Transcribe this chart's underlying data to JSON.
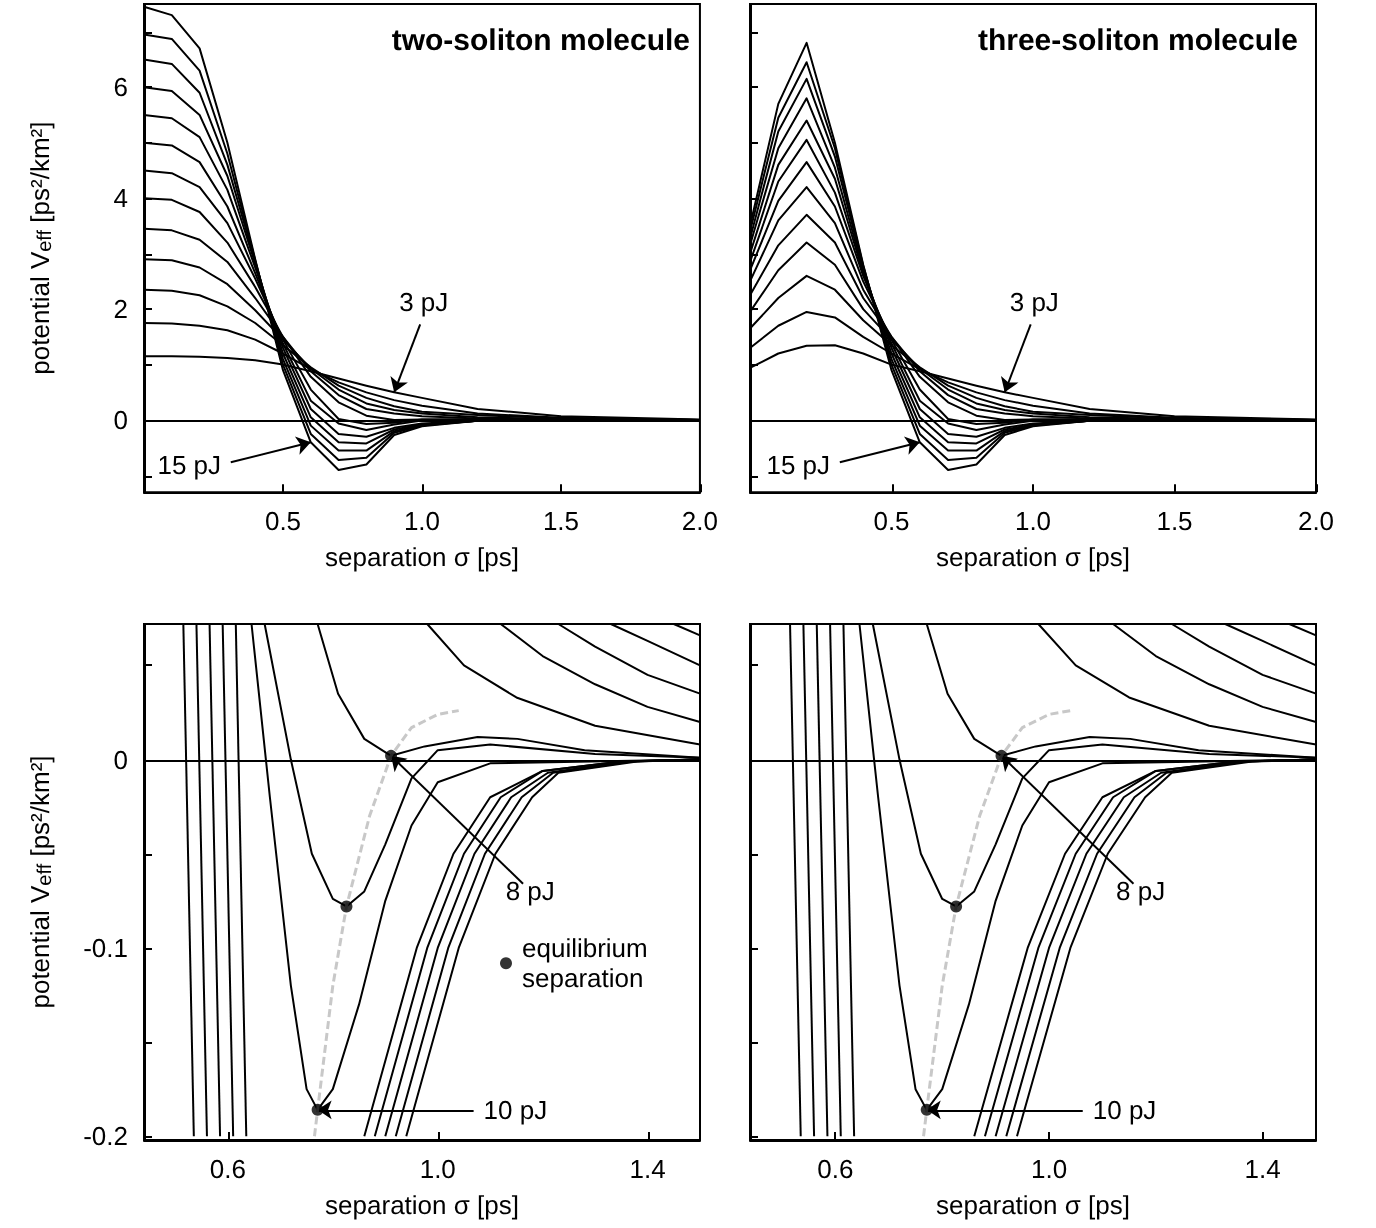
{
  "chart_data": [
    {
      "type": "line",
      "title": "two-soliton molecule",
      "xlabel": "separation σ [ps]",
      "ylabel": "potential V$_{eff}$ [ps²/km²]",
      "marker": "none",
      "xlim": [
        0,
        2
      ],
      "ylim": [
        -1.3,
        7.5
      ],
      "xticks": [
        {
          "value": 0.5,
          "label": "0.5"
        },
        {
          "value": 1,
          "label": "1.0"
        },
        {
          "value": 1.5,
          "label": "1.5"
        },
        {
          "value": 2,
          "label": "2.0"
        }
      ],
      "yticks": [
        {
          "value": -1,
          "label": null
        },
        0,
        {
          "value": 1,
          "label": null
        },
        2,
        {
          "value": 3,
          "label": null
        },
        4,
        {
          "value": 5,
          "label": null
        },
        6,
        {
          "value": 7,
          "label": null
        }
      ],
      "x": [
        0,
        0.1,
        0.2,
        0.3,
        0.4,
        0.5,
        0.6,
        0.7,
        0.8,
        0.9,
        1.0,
        1.2,
        1.5,
        2.0
      ],
      "series": [
        {
          "color": "#000000",
          "values": [
            1.15,
            1.15,
            1.14,
            1.12,
            1.08,
            1.0,
            0.88,
            0.75,
            0.62,
            0.5,
            0.4,
            0.2,
            0.07,
            0.01
          ]
        },
        {
          "color": "#000000",
          "values": [
            1.75,
            1.74,
            1.7,
            1.62,
            1.45,
            1.2,
            0.92,
            0.68,
            0.5,
            0.36,
            0.26,
            0.12,
            0.04,
            0
          ]
        },
        {
          "color": "#000000",
          "values": [
            2.35,
            2.33,
            2.25,
            2.05,
            1.75,
            1.35,
            0.95,
            0.62,
            0.4,
            0.25,
            0.15,
            0.09,
            0.03,
            0
          ]
        },
        {
          "color": "#000000",
          "values": [
            2.9,
            2.88,
            2.75,
            2.45,
            1.98,
            1.45,
            0.93,
            0.55,
            0.3,
            0.18,
            0.12,
            0.05,
            0.02,
            0
          ]
        },
        {
          "color": "#000000",
          "values": [
            3.45,
            3.42,
            3.25,
            2.85,
            2.2,
            1.5,
            0.88,
            0.45,
            0.2,
            0.12,
            0.07,
            0.03,
            0.01,
            0
          ]
        },
        {
          "color": "#000000",
          "values": [
            4.0,
            3.97,
            3.75,
            3.2,
            2.4,
            1.5,
            0.78,
            0.32,
            0.08,
            0,
            0.01,
            0.01,
            0,
            0
          ]
        },
        {
          "color": "#000000",
          "values": [
            4.5,
            4.45,
            4.2,
            3.55,
            2.55,
            1.45,
            0.55,
            0.02,
            -0.07,
            -0.05,
            0.01,
            0.01,
            0,
            0
          ]
        },
        {
          "color": "#000000",
          "values": [
            5.0,
            4.95,
            4.65,
            3.85,
            2.65,
            1.38,
            0.35,
            -0.06,
            -0.18,
            -0.08,
            -0.01,
            0,
            0,
            0
          ]
        },
        {
          "color": "#000000",
          "values": [
            5.5,
            5.44,
            5.1,
            4.15,
            2.75,
            1.3,
            0.2,
            -0.25,
            -0.3,
            -0.14,
            -0.06,
            -0.01,
            0,
            0
          ]
        },
        {
          "color": "#000000",
          "values": [
            6.0,
            5.93,
            5.5,
            4.4,
            2.82,
            1.2,
            0.05,
            -0.4,
            -0.42,
            -0.17,
            -0.08,
            -0.01,
            0,
            0
          ]
        },
        {
          "color": "#000000",
          "values": [
            6.5,
            6.42,
            5.9,
            4.6,
            2.86,
            1.1,
            -0.1,
            -0.55,
            -0.55,
            -0.2,
            -0.09,
            -0.01,
            0,
            0
          ]
        },
        {
          "color": "#000000",
          "values": [
            6.95,
            6.87,
            6.3,
            4.8,
            2.88,
            1.0,
            -0.25,
            -0.72,
            -0.68,
            -0.23,
            -0.1,
            -0.01,
            0,
            0
          ]
        },
        {
          "color": "#000000",
          "values": [
            7.45,
            7.3,
            6.7,
            5.0,
            2.9,
            0.9,
            -0.4,
            -0.9,
            -0.8,
            -0.27,
            -0.11,
            -0.01,
            0,
            0
          ]
        }
      ],
      "ref_lines": [
        {
          "axis": "y",
          "value": 0,
          "color": "#000000"
        }
      ],
      "annotations": [
        {
          "text": "3 pJ",
          "x": 0.9,
          "y": 0.5
        },
        {
          "text": "15 pJ",
          "x": 0.6,
          "y": -0.4
        }
      ]
    },
    {
      "type": "line",
      "title": "three-soliton molecule",
      "xlabel": "separation σ [ps]",
      "marker": "none",
      "tick_labels": "x",
      "xlim": [
        0,
        2
      ],
      "ylim": [
        -1.3,
        7.5
      ],
      "xticks": [
        {
          "value": 0.5,
          "label": "0.5"
        },
        {
          "value": 1,
          "label": "1.0"
        },
        {
          "value": 1.5,
          "label": "1.5"
        },
        {
          "value": 2,
          "label": "2.0"
        }
      ],
      "yticks": [
        {
          "value": -1,
          "label": null
        },
        0,
        {
          "value": 1,
          "label": null
        },
        2,
        {
          "value": 3,
          "label": null
        },
        4,
        {
          "value": 5,
          "label": null
        },
        6,
        {
          "value": 7,
          "label": null
        }
      ],
      "x": [
        0,
        0.1,
        0.2,
        0.3,
        0.4,
        0.5,
        0.6,
        0.7,
        0.8,
        0.9,
        1.0,
        1.2,
        1.5,
        2.0
      ],
      "series": [
        {
          "color": "#000000",
          "values": [
            0.94,
            1.2,
            1.34,
            1.35,
            1.2,
            1.0,
            0.88,
            0.75,
            0.62,
            0.5,
            0.4,
            0.2,
            0.07,
            0.01
          ]
        },
        {
          "color": "#000000",
          "values": [
            1.3,
            1.7,
            1.95,
            1.85,
            1.5,
            1.2,
            0.92,
            0.68,
            0.5,
            0.36,
            0.26,
            0.12,
            0.04,
            0
          ]
        },
        {
          "color": "#000000",
          "values": [
            1.65,
            2.2,
            2.6,
            2.35,
            1.8,
            1.35,
            0.95,
            0.62,
            0.4,
            0.25,
            0.15,
            0.09,
            0.03,
            0
          ]
        },
        {
          "color": "#000000",
          "values": [
            1.95,
            2.7,
            3.2,
            2.8,
            2.0,
            1.45,
            0.93,
            0.55,
            0.3,
            0.18,
            0.12,
            0.05,
            0.02,
            0
          ]
        },
        {
          "color": "#000000",
          "values": [
            2.25,
            3.15,
            3.7,
            3.2,
            2.2,
            1.5,
            0.88,
            0.45,
            0.2,
            0.12,
            0.07,
            0.03,
            0.01,
            0
          ]
        },
        {
          "color": "#000000",
          "values": [
            2.5,
            3.6,
            4.2,
            3.55,
            2.35,
            1.5,
            0.78,
            0.32,
            0.08,
            0,
            0.01,
            0.01,
            0,
            0
          ]
        },
        {
          "color": "#000000",
          "values": [
            2.7,
            3.95,
            4.65,
            3.85,
            2.5,
            1.45,
            0.55,
            0.02,
            -0.07,
            -0.05,
            0.01,
            0.01,
            0,
            0
          ]
        },
        {
          "color": "#000000",
          "values": [
            2.85,
            4.3,
            5.05,
            4.1,
            2.6,
            1.38,
            0.35,
            -0.06,
            -0.18,
            -0.08,
            -0.01,
            0,
            0,
            0
          ]
        },
        {
          "color": "#000000",
          "values": [
            3.0,
            4.6,
            5.4,
            4.35,
            2.65,
            1.3,
            0.2,
            -0.25,
            -0.3,
            -0.14,
            -0.06,
            -0.01,
            0,
            0
          ]
        },
        {
          "color": "#000000",
          "values": [
            3.15,
            4.9,
            5.8,
            4.55,
            2.7,
            1.2,
            0.05,
            -0.4,
            -0.42,
            -0.17,
            -0.08,
            -0.01,
            0,
            0
          ]
        },
        {
          "color": "#000000",
          "values": [
            3.27,
            5.2,
            6.15,
            4.75,
            2.75,
            1.1,
            -0.1,
            -0.55,
            -0.55,
            -0.2,
            -0.09,
            -0.01,
            0,
            0
          ]
        },
        {
          "color": "#000000",
          "values": [
            3.4,
            5.45,
            6.45,
            4.9,
            2.78,
            1.0,
            -0.25,
            -0.72,
            -0.68,
            -0.23,
            -0.1,
            -0.01,
            0,
            0
          ]
        },
        {
          "color": "#000000",
          "values": [
            3.5,
            5.7,
            6.8,
            5.0,
            2.8,
            0.9,
            -0.4,
            -0.9,
            -0.8,
            -0.27,
            -0.11,
            -0.01,
            0,
            0
          ]
        }
      ],
      "ref_lines": [
        {
          "axis": "y",
          "value": 0,
          "color": "#000000"
        }
      ],
      "annotations": [
        {
          "text": "3 pJ",
          "x": 0.9,
          "y": 0.5
        },
        {
          "text": "15 pJ",
          "x": 0.6,
          "y": -0.4
        }
      ]
    },
    {
      "type": "line",
      "xlabel": "separation σ [ps]",
      "ylabel": "potential V$_{eff}$ [ps²/km²]",
      "marker": "none",
      "legend": "right",
      "xlim": [
        0.44,
        1.5
      ],
      "ylim": [
        -0.202,
        0.072
      ],
      "xticks": [
        {
          "value": 0.6,
          "label": "0.6"
        },
        {
          "value": 1,
          "label": "1.0"
        },
        {
          "value": 1.4,
          "label": "1.4"
        }
      ],
      "yticks": [
        -0.2,
        {
          "value": -0.15,
          "label": null
        },
        -0.1,
        {
          "value": -0.05,
          "label": null
        },
        0,
        {
          "value": 0.05,
          "label": null
        }
      ],
      "series": [
        {
          "color": "#000000",
          "x": [
            1.45,
            1.5
          ],
          "values": [
            0.072,
            0.066
          ]
        },
        {
          "color": "#000000",
          "x": [
            1.33,
            1.4,
            1.5
          ],
          "values": [
            0.072,
            0.063,
            0.05
          ]
        },
        {
          "color": "#000000",
          "x": [
            1.23,
            1.3,
            1.4,
            1.5
          ],
          "values": [
            0.072,
            0.06,
            0.045,
            0.035
          ]
        },
        {
          "color": "#000000",
          "x": [
            1.12,
            1.2,
            1.3,
            1.4,
            1.5
          ],
          "values": [
            0.072,
            0.055,
            0.04,
            0.028,
            0.02
          ]
        },
        {
          "color": "#000000",
          "x": [
            0.98,
            1.05,
            1.15,
            1.3,
            1.5
          ],
          "values": [
            0.072,
            0.05,
            0.033,
            0.018,
            0.008
          ]
        },
        {
          "color": "#000000",
          "x": [
            0.771,
            0.81,
            0.86,
            0.911,
            0.975,
            1.076,
            1.152,
            1.28,
            1.5
          ],
          "values": [
            0.072,
            0.035,
            0.011,
            0.002,
            0.007,
            0.012,
            0.011,
            0.005,
            0.001
          ]
        },
        {
          "color": "#000000",
          "x": [
            0.67,
            0.72,
            0.76,
            0.8,
            0.826,
            0.86,
            0.9,
            0.95,
            1.0,
            1.1,
            1.3,
            1.5
          ],
          "values": [
            0.072,
            0.0,
            -0.05,
            -0.074,
            -0.078,
            -0.07,
            -0.045,
            -0.01,
            0.005,
            0.008,
            0.003,
            0.001
          ]
        },
        {
          "color": "#000000",
          "x": [
            0.645,
            0.68,
            0.72,
            0.75,
            0.771,
            0.8,
            0.85,
            0.9,
            0.95,
            1.0,
            1.1,
            1.5
          ],
          "values": [
            0.072,
            -0.02,
            -0.12,
            -0.175,
            -0.186,
            -0.175,
            -0.13,
            -0.075,
            -0.035,
            -0.012,
            -0.002,
            0
          ]
        },
        {
          "color": "#000000",
          "x": [
            0.615,
            0.635
          ],
          "values": [
            0.072,
            -0.2
          ]
        },
        {
          "color": "#000000",
          "x": [
            0.59,
            0.61
          ],
          "values": [
            0.072,
            -0.2
          ]
        },
        {
          "color": "#000000",
          "x": [
            0.565,
            0.585
          ],
          "values": [
            0.072,
            -0.2
          ]
        },
        {
          "color": "#000000",
          "x": [
            0.54,
            0.56
          ],
          "values": [
            0.072,
            -0.2
          ]
        },
        {
          "color": "#000000",
          "x": [
            0.515,
            0.535
          ],
          "values": [
            0.072,
            -0.2
          ]
        },
        {
          "color": "#000000",
          "x": [
            0.86,
            0.92,
            0.96,
            1.03,
            1.1,
            1.2,
            1.35,
            1.5
          ],
          "values": [
            -0.2,
            -0.14,
            -0.1,
            -0.05,
            -0.02,
            -0.006,
            -0.001,
            0
          ]
        },
        {
          "color": "#000000",
          "x": [
            0.88,
            0.94,
            0.98,
            1.05,
            1.12,
            1.2,
            1.35,
            1.5
          ],
          "values": [
            -0.2,
            -0.14,
            -0.1,
            -0.05,
            -0.02,
            -0.006,
            -0.001,
            0
          ]
        },
        {
          "color": "#000000",
          "x": [
            0.9,
            0.96,
            1.0,
            1.07,
            1.14,
            1.21,
            1.36,
            1.5
          ],
          "values": [
            -0.2,
            -0.14,
            -0.1,
            -0.05,
            -0.02,
            -0.007,
            -0.001,
            0
          ]
        },
        {
          "color": "#000000",
          "x": [
            0.92,
            0.98,
            1.02,
            1.09,
            1.16,
            1.22,
            1.37,
            1.5
          ],
          "values": [
            -0.2,
            -0.14,
            -0.1,
            -0.05,
            -0.02,
            -0.007,
            -0.001,
            0
          ]
        },
        {
          "color": "#000000",
          "x": [
            0.94,
            1.0,
            1.04,
            1.11,
            1.18,
            1.23,
            1.38,
            1.5
          ],
          "values": [
            -0.2,
            -0.14,
            -0.1,
            -0.05,
            -0.02,
            -0.007,
            -0.001,
            0
          ]
        },
        {
          "color": "#c8c8c8",
          "line_style": "dashed",
          "x": [
            0.765,
            0.771,
            0.8,
            0.826,
            0.87,
            0.911,
            0.95,
            1.0,
            1.04
          ],
          "values": [
            -0.2,
            -0.186,
            -0.12,
            -0.078,
            -0.03,
            0.002,
            0.017,
            0.024,
            0.026
          ]
        },
        {
          "type": "scatter",
          "name": "equilibrium separation",
          "marker": "circle",
          "color": "#000000",
          "x": [
            0.771,
            0.826,
            0.911
          ],
          "values": [
            -0.186,
            -0.078,
            0.002
          ]
        }
      ],
      "ref_lines": [
        {
          "axis": "y",
          "value": 0,
          "color": "#000000"
        }
      ],
      "annotations": [
        {
          "text": "8 pJ",
          "x": 0.911,
          "y": 0.002
        },
        {
          "text": "10 pJ",
          "x": 0.771,
          "y": -0.186
        }
      ]
    },
    {
      "type": "line",
      "xlabel": "separation σ [ps]",
      "marker": "none",
      "tick_labels": "x",
      "xlim": [
        0.44,
        1.5
      ],
      "ylim": [
        -0.202,
        0.072
      ],
      "xticks": [
        {
          "value": 0.6,
          "label": "0.6"
        },
        {
          "value": 1,
          "label": "1.0"
        },
        {
          "value": 1.4,
          "label": "1.4"
        }
      ],
      "yticks": [
        {
          "value": -0.2,
          "label": null
        },
        {
          "value": -0.15,
          "label": null
        },
        {
          "value": -0.1,
          "label": null
        },
        {
          "value": -0.05,
          "label": null
        },
        {
          "value": 0,
          "label": null
        },
        {
          "value": 0.05,
          "label": null
        }
      ],
      "series": [
        {
          "color": "#000000",
          "x": [
            1.45,
            1.5
          ],
          "values": [
            0.072,
            0.066
          ]
        },
        {
          "color": "#000000",
          "x": [
            1.33,
            1.4,
            1.5
          ],
          "values": [
            0.072,
            0.063,
            0.05
          ]
        },
        {
          "color": "#000000",
          "x": [
            1.23,
            1.3,
            1.4,
            1.5
          ],
          "values": [
            0.072,
            0.06,
            0.045,
            0.035
          ]
        },
        {
          "color": "#000000",
          "x": [
            1.12,
            1.2,
            1.3,
            1.4,
            1.5
          ],
          "values": [
            0.072,
            0.055,
            0.04,
            0.028,
            0.02
          ]
        },
        {
          "color": "#000000",
          "x": [
            0.98,
            1.05,
            1.15,
            1.3,
            1.5
          ],
          "values": [
            0.072,
            0.05,
            0.033,
            0.018,
            0.008
          ]
        },
        {
          "color": "#000000",
          "x": [
            0.771,
            0.81,
            0.86,
            0.911,
            0.975,
            1.076,
            1.152,
            1.28,
            1.5
          ],
          "values": [
            0.072,
            0.035,
            0.011,
            0.002,
            0.007,
            0.012,
            0.011,
            0.005,
            0.001
          ]
        },
        {
          "color": "#000000",
          "x": [
            0.67,
            0.72,
            0.76,
            0.8,
            0.826,
            0.86,
            0.9,
            0.95,
            1.0,
            1.1,
            1.3,
            1.5
          ],
          "values": [
            0.072,
            0.0,
            -0.05,
            -0.074,
            -0.078,
            -0.07,
            -0.045,
            -0.01,
            0.005,
            0.008,
            0.003,
            0.001
          ]
        },
        {
          "color": "#000000",
          "x": [
            0.645,
            0.68,
            0.72,
            0.75,
            0.771,
            0.8,
            0.85,
            0.9,
            0.95,
            1.0,
            1.1,
            1.5
          ],
          "values": [
            0.072,
            -0.02,
            -0.12,
            -0.175,
            -0.186,
            -0.175,
            -0.13,
            -0.075,
            -0.035,
            -0.012,
            -0.002,
            0
          ]
        },
        {
          "color": "#000000",
          "x": [
            0.615,
            0.635
          ],
          "values": [
            0.072,
            -0.2
          ]
        },
        {
          "color": "#000000",
          "x": [
            0.59,
            0.61
          ],
          "values": [
            0.072,
            -0.2
          ]
        },
        {
          "color": "#000000",
          "x": [
            0.565,
            0.585
          ],
          "values": [
            0.072,
            -0.2
          ]
        },
        {
          "color": "#000000",
          "x": [
            0.54,
            0.56
          ],
          "values": [
            0.072,
            -0.2
          ]
        },
        {
          "color": "#000000",
          "x": [
            0.515,
            0.535
          ],
          "values": [
            0.072,
            -0.2
          ]
        },
        {
          "color": "#000000",
          "x": [
            0.86,
            0.92,
            0.96,
            1.03,
            1.1,
            1.2,
            1.35,
            1.5
          ],
          "values": [
            -0.2,
            -0.14,
            -0.1,
            -0.05,
            -0.02,
            -0.006,
            -0.001,
            0
          ]
        },
        {
          "color": "#000000",
          "x": [
            0.88,
            0.94,
            0.98,
            1.05,
            1.12,
            1.2,
            1.35,
            1.5
          ],
          "values": [
            -0.2,
            -0.14,
            -0.1,
            -0.05,
            -0.02,
            -0.006,
            -0.001,
            0
          ]
        },
        {
          "color": "#000000",
          "x": [
            0.9,
            0.96,
            1.0,
            1.07,
            1.14,
            1.21,
            1.36,
            1.5
          ],
          "values": [
            -0.2,
            -0.14,
            -0.1,
            -0.05,
            -0.02,
            -0.007,
            -0.001,
            0
          ]
        },
        {
          "color": "#000000",
          "x": [
            0.92,
            0.98,
            1.02,
            1.09,
            1.16,
            1.22,
            1.37,
            1.5
          ],
          "values": [
            -0.2,
            -0.14,
            -0.1,
            -0.05,
            -0.02,
            -0.007,
            -0.001,
            0
          ]
        },
        {
          "color": "#000000",
          "x": [
            0.94,
            1.0,
            1.04,
            1.11,
            1.18,
            1.23,
            1.38,
            1.5
          ],
          "values": [
            -0.2,
            -0.14,
            -0.1,
            -0.05,
            -0.02,
            -0.007,
            -0.001,
            0
          ]
        },
        {
          "color": "#c8c8c8",
          "line_style": "dashed",
          "x": [
            0.765,
            0.771,
            0.8,
            0.826,
            0.87,
            0.911,
            0.95,
            1.0,
            1.04
          ],
          "values": [
            -0.2,
            -0.186,
            -0.12,
            -0.078,
            -0.03,
            0.002,
            0.017,
            0.024,
            0.026
          ]
        },
        {
          "type": "scatter",
          "marker": "circle",
          "color": "#000000",
          "x": [
            0.771,
            0.826,
            0.911
          ],
          "values": [
            -0.186,
            -0.078,
            0.002
          ]
        }
      ],
      "ref_lines": [
        {
          "axis": "y",
          "value": 0,
          "color": "#000000"
        }
      ],
      "annotations": [
        {
          "text": "8 pJ",
          "x": 0.911,
          "y": 0.002
        },
        {
          "text": "10 pJ",
          "x": 0.771,
          "y": -0.186
        }
      ]
    }
  ]
}
